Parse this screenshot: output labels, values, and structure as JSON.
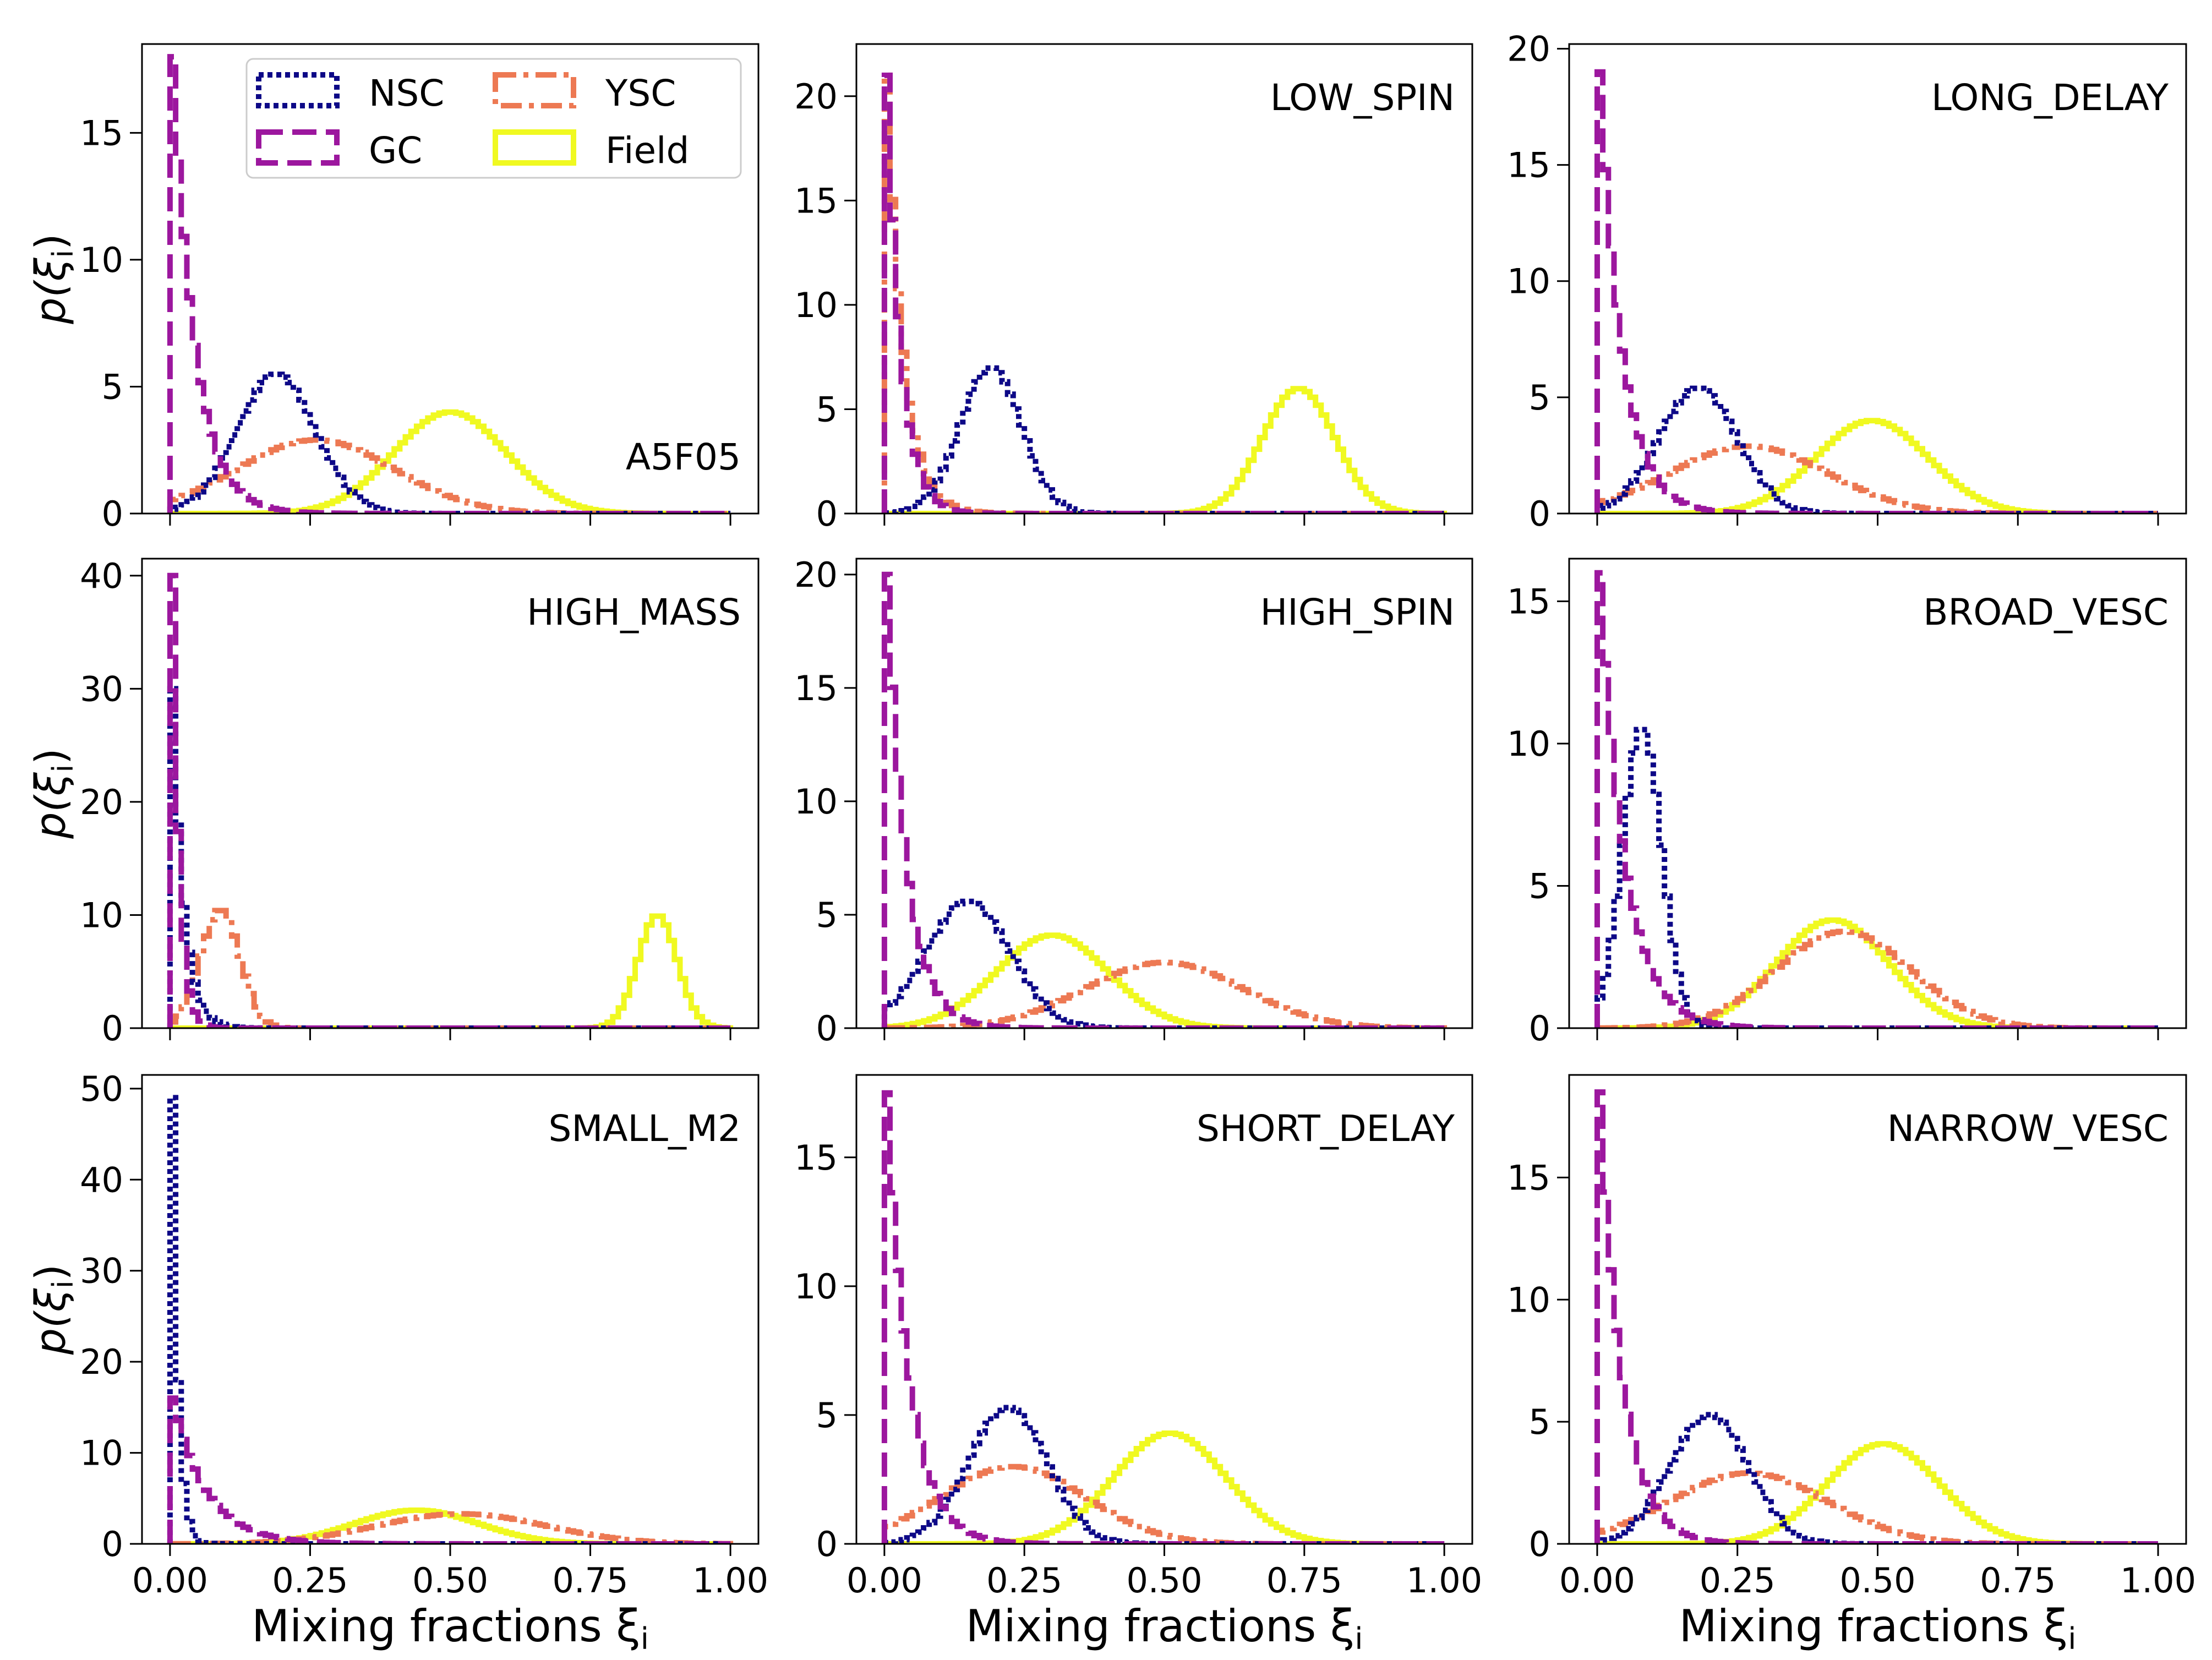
{
  "figure": {
    "xlabel": "Mixing fractions ξ",
    "xlabel_sub": "i",
    "ylabel": "p(ξ",
    "ylabel_sub": "i",
    "ylabel_close": ")"
  },
  "chart_data": {
    "type": "step-histogram-grid",
    "rows": 3,
    "cols": 3,
    "xlim": [
      0,
      1
    ],
    "xticks": [
      0,
      0.25,
      0.5,
      0.75,
      1.0
    ],
    "xtick_labels": [
      "0.00",
      "0.25",
      "0.50",
      "0.75",
      "1.00"
    ],
    "legend": {
      "placement": "upper-center of first panel",
      "entries": [
        {
          "key": "NSC",
          "label": "NSC",
          "color": "#0d0887",
          "style": "dotted"
        },
        {
          "key": "GC",
          "label": "GC",
          "color": "#9c179e",
          "style": "dashed"
        },
        {
          "key": "YSC",
          "label": "YSC",
          "color": "#ed7953",
          "style": "dashdot"
        },
        {
          "key": "Field",
          "label": "Field",
          "color": "#f0f921",
          "style": "solid"
        }
      ]
    },
    "panels": [
      {
        "name": "A5F05",
        "label_pos": "lower-right",
        "ylim": [
          0,
          18.5
        ],
        "yticks": [
          0,
          5,
          10,
          15
        ],
        "series": {
          "GC": {
            "shape": "exp",
            "peak": 18,
            "decay": 0.04
          },
          "NSC": {
            "shape": "gauss",
            "mu": 0.19,
            "sigma": 0.07,
            "peak": 5.5
          },
          "YSC": {
            "shape": "gauss",
            "mu": 0.26,
            "sigma": 0.14,
            "peak": 2.9
          },
          "Field": {
            "shape": "gauss",
            "mu": 0.5,
            "sigma": 0.1,
            "peak": 4.0
          }
        }
      },
      {
        "name": "LOW_SPIN",
        "label_pos": "upper-right",
        "ylim": [
          0,
          22.5
        ],
        "yticks": [
          0,
          5,
          10,
          15,
          20
        ],
        "series": {
          "GC": {
            "shape": "exp",
            "peak": 21,
            "decay": 0.025
          },
          "YSC": {
            "shape": "exp",
            "peak": 21,
            "decay": 0.03
          },
          "NSC": {
            "shape": "gauss",
            "mu": 0.19,
            "sigma": 0.055,
            "peak": 7.0
          },
          "Field": {
            "shape": "gauss",
            "mu": 0.74,
            "sigma": 0.065,
            "peak": 6.0
          }
        }
      },
      {
        "name": "LONG_DELAY",
        "label_pos": "upper-right",
        "ylim": [
          0,
          20.2
        ],
        "yticks": [
          0,
          5,
          10,
          15,
          20
        ],
        "series": {
          "GC": {
            "shape": "exp",
            "peak": 19,
            "decay": 0.04
          },
          "NSC": {
            "shape": "gauss",
            "mu": 0.18,
            "sigma": 0.07,
            "peak": 5.4
          },
          "YSC": {
            "shape": "gauss",
            "mu": 0.27,
            "sigma": 0.14,
            "peak": 2.9
          },
          "Field": {
            "shape": "gauss",
            "mu": 0.49,
            "sigma": 0.1,
            "peak": 4.0
          }
        }
      },
      {
        "name": "HIGH_MASS",
        "label_pos": "upper-right",
        "ylim": [
          0,
          41.5
        ],
        "yticks": [
          0,
          10,
          20,
          30,
          40
        ],
        "series": {
          "GC": {
            "shape": "exp",
            "peak": 40,
            "decay": 0.012
          },
          "NSC": {
            "shape": "exp",
            "peak": 30,
            "decay": 0.02
          },
          "YSC": {
            "shape": "gauss",
            "mu": 0.09,
            "sigma": 0.035,
            "peak": 10.5
          },
          "Field": {
            "shape": "gauss",
            "mu": 0.87,
            "sigma": 0.035,
            "peak": 10.0
          }
        }
      },
      {
        "name": "HIGH_SPIN",
        "label_pos": "upper-right",
        "ylim": [
          0,
          20.7
        ],
        "yticks": [
          0,
          5,
          10,
          15,
          20
        ],
        "series": {
          "GC": {
            "shape": "exp",
            "peak": 20,
            "decay": 0.035
          },
          "NSC": {
            "shape": "gauss",
            "mu": 0.15,
            "sigma": 0.075,
            "peak": 5.6
          },
          "YSC": {
            "shape": "gauss",
            "mu": 0.5,
            "sigma": 0.14,
            "peak": 2.9
          },
          "Field": {
            "shape": "gauss",
            "mu": 0.3,
            "sigma": 0.1,
            "peak": 4.1
          }
        }
      },
      {
        "name": "BROAD_VESC",
        "label_pos": "upper-right",
        "ylim": [
          0,
          16.5
        ],
        "yticks": [
          0,
          5,
          10,
          15
        ],
        "series": {
          "GC": {
            "shape": "exp",
            "peak": 16,
            "decay": 0.045
          },
          "NSC": {
            "shape": "gauss",
            "mu": 0.08,
            "sigma": 0.035,
            "peak": 10.6
          },
          "YSC": {
            "shape": "gauss",
            "mu": 0.44,
            "sigma": 0.12,
            "peak": 3.4
          },
          "Field": {
            "shape": "gauss",
            "mu": 0.42,
            "sigma": 0.1,
            "peak": 3.8
          }
        }
      },
      {
        "name": "SMALL_M2",
        "label_pos": "upper-right",
        "ylim": [
          0,
          51.5
        ],
        "yticks": [
          0,
          10,
          20,
          30,
          40,
          50
        ],
        "series": {
          "NSC": {
            "shape": "exp",
            "peak": 49,
            "decay": 0.01
          },
          "GC": {
            "shape": "exp",
            "peak": 16,
            "decay": 0.06
          },
          "YSC": {
            "shape": "gauss",
            "mu": 0.52,
            "sigma": 0.15,
            "peak": 3.3
          },
          "Field": {
            "shape": "gauss",
            "mu": 0.44,
            "sigma": 0.11,
            "peak": 3.7
          }
        }
      },
      {
        "name": "SHORT_DELAY",
        "label_pos": "upper-right",
        "ylim": [
          0,
          18.2
        ],
        "yticks": [
          0,
          5,
          10,
          15
        ],
        "series": {
          "GC": {
            "shape": "exp",
            "peak": 17.5,
            "decay": 0.04
          },
          "NSC": {
            "shape": "gauss",
            "mu": 0.22,
            "sigma": 0.07,
            "peak": 5.3
          },
          "YSC": {
            "shape": "gauss",
            "mu": 0.23,
            "sigma": 0.13,
            "peak": 3.0
          },
          "Field": {
            "shape": "gauss",
            "mu": 0.51,
            "sigma": 0.1,
            "peak": 4.3
          }
        }
      },
      {
        "name": "NARROW_VESC",
        "label_pos": "upper-right",
        "ylim": [
          0,
          19.2
        ],
        "yticks": [
          0,
          5,
          10,
          15
        ],
        "series": {
          "GC": {
            "shape": "exp",
            "peak": 18.5,
            "decay": 0.04
          },
          "NSC": {
            "shape": "gauss",
            "mu": 0.2,
            "sigma": 0.07,
            "peak": 5.3
          },
          "YSC": {
            "shape": "gauss",
            "mu": 0.27,
            "sigma": 0.14,
            "peak": 2.9
          },
          "Field": {
            "shape": "gauss",
            "mu": 0.51,
            "sigma": 0.1,
            "peak": 4.1
          }
        }
      }
    ]
  }
}
